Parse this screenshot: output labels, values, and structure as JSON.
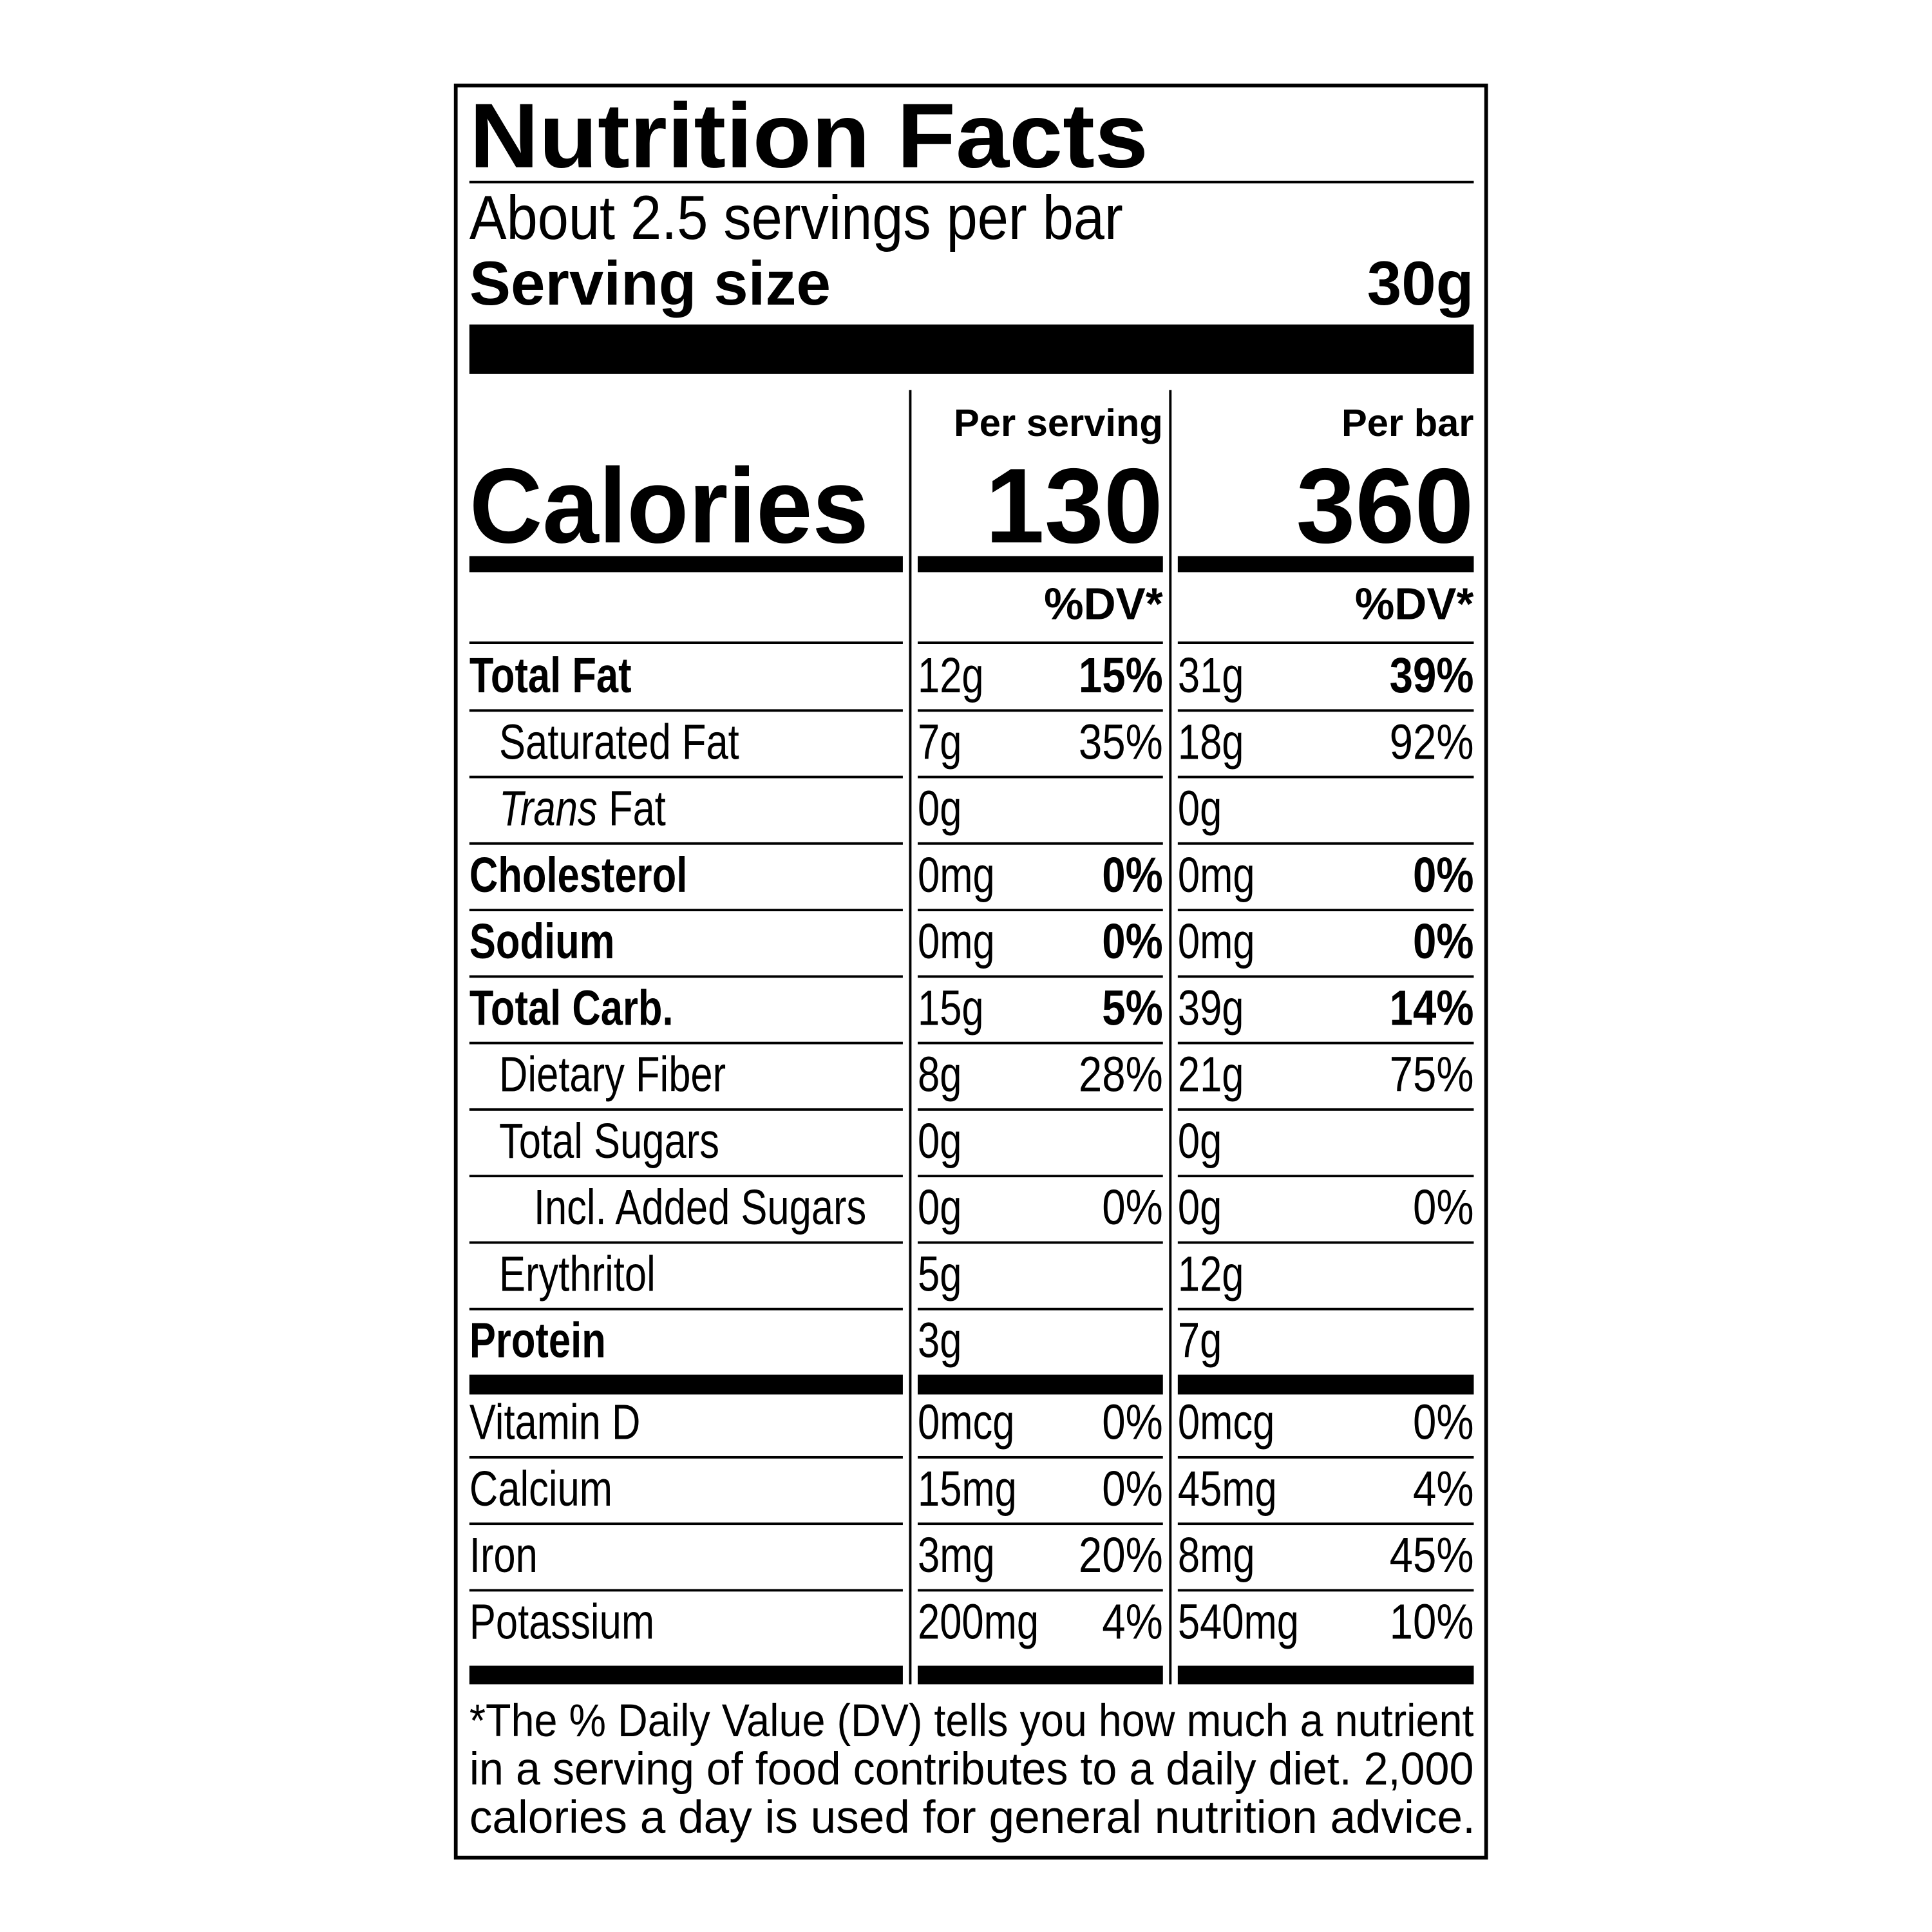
{
  "header": {
    "title": "Nutrition Facts",
    "servings": "About 2.5 servings per bar",
    "serving_size_label": "Serving size",
    "serving_size_value": "30g"
  },
  "columns": [
    {
      "heading": "Per serving",
      "calories": "130",
      "dv_heading": "%DV*"
    },
    {
      "heading": "Per bar",
      "calories": "360",
      "dv_heading": "%DV*"
    }
  ],
  "calories_label": "Calories",
  "rows": [
    {
      "label": "Total Fat",
      "bold": true,
      "indent": 0,
      "cells": [
        {
          "amount": "12g",
          "dv": "15%"
        },
        {
          "amount": "31g",
          "dv": "39%"
        }
      ]
    },
    {
      "label": "Saturated Fat",
      "bold": false,
      "indent": 1,
      "cells": [
        {
          "amount": "7g",
          "dv": "35%"
        },
        {
          "amount": "18g",
          "dv": "92%"
        }
      ]
    },
    {
      "label_italic": "Trans",
      "label": "Fat",
      "bold": false,
      "indent": 1,
      "cells": [
        {
          "amount": "0g"
        },
        {
          "amount": "0g"
        }
      ]
    },
    {
      "label": "Cholesterol",
      "bold": true,
      "indent": 0,
      "cells": [
        {
          "amount": "0mg",
          "dv": "0%"
        },
        {
          "amount": "0mg",
          "dv": "0%"
        }
      ]
    },
    {
      "label": "Sodium",
      "bold": true,
      "indent": 0,
      "cells": [
        {
          "amount": "0mg",
          "dv": "0%"
        },
        {
          "amount": "0mg",
          "dv": "0%"
        }
      ]
    },
    {
      "label": "Total Carb.",
      "bold": true,
      "indent": 0,
      "cells": [
        {
          "amount": "15g",
          "dv": "5%"
        },
        {
          "amount": "39g",
          "dv": "14%"
        }
      ]
    },
    {
      "label": "Dietary Fiber",
      "bold": false,
      "indent": 1,
      "cells": [
        {
          "amount": "8g",
          "dv": "28%"
        },
        {
          "amount": "21g",
          "dv": "75%"
        }
      ]
    },
    {
      "label": "Total Sugars",
      "bold": false,
      "indent": 1,
      "cells": [
        {
          "amount": "0g"
        },
        {
          "amount": "0g"
        }
      ]
    },
    {
      "label": "Incl. Added Sugars",
      "bold": false,
      "indent": 2,
      "cells": [
        {
          "amount": "0g",
          "dv": "0%"
        },
        {
          "amount": "0g",
          "dv": "0%"
        }
      ]
    },
    {
      "label": "Erythritol",
      "bold": false,
      "indent": 1,
      "cells": [
        {
          "amount": "5g"
        },
        {
          "amount": "12g"
        }
      ]
    },
    {
      "label": "Protein",
      "bold": true,
      "indent": 0,
      "cells": [
        {
          "amount": "3g"
        },
        {
          "amount": "7g"
        }
      ]
    }
  ],
  "vitamins": [
    {
      "label": "Vitamin D",
      "cells": [
        {
          "amount": "0mcg",
          "dv": "0%"
        },
        {
          "amount": "0mcg",
          "dv": "0%"
        }
      ]
    },
    {
      "label": "Calcium",
      "cells": [
        {
          "amount": "15mg",
          "dv": "0%"
        },
        {
          "amount": "45mg",
          "dv": "4%"
        }
      ]
    },
    {
      "label": "Iron",
      "cells": [
        {
          "amount": "3mg",
          "dv": "20%"
        },
        {
          "amount": "8mg",
          "dv": "45%"
        }
      ]
    },
    {
      "label": "Potassium",
      "cells": [
        {
          "amount": "200mg",
          "dv": "4%"
        },
        {
          "amount": "540mg",
          "dv": "10%"
        }
      ]
    }
  ],
  "footnote": [
    "*The % Daily Value (DV) tells you how much a nutrient",
    "in a serving of food contributes to a daily diet. 2,000",
    "calories a day is used for general nutrition advice."
  ]
}
